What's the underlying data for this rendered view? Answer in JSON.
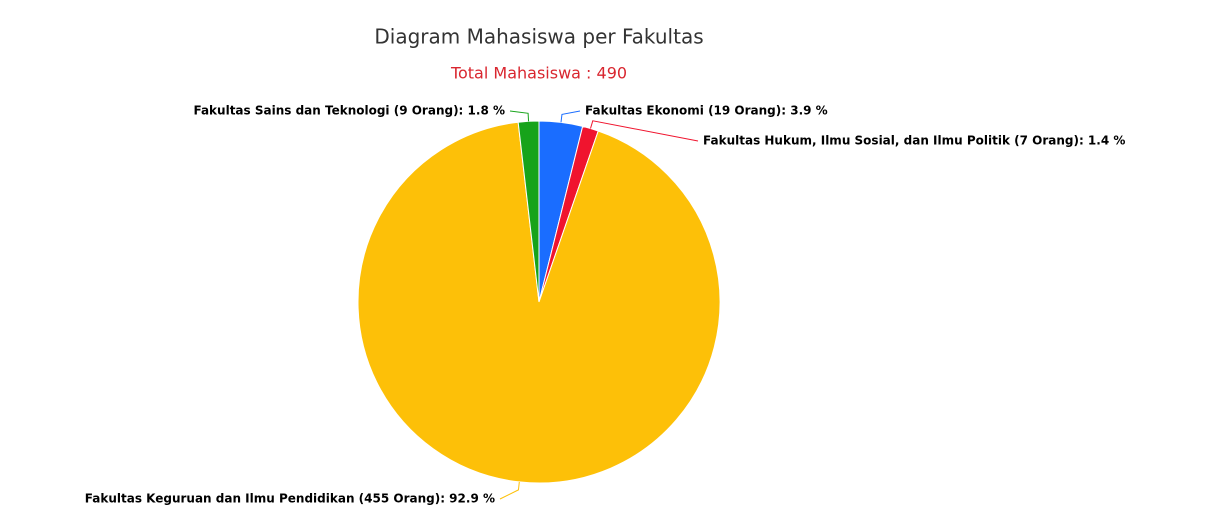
{
  "chart_data": {
    "type": "pie",
    "title": "Diagram Mahasiswa per Fakultas",
    "subtitle": "Total Mahasiswa : 490",
    "categories": [
      "Fakultas Ekonomi",
      "Fakultas Hukum, Ilmu Sosial, dan Ilmu Politik",
      "Fakultas Keguruan dan Ilmu Pendidikan",
      "Fakultas Sains dan Teknologi"
    ],
    "values": [
      19,
      7,
      455,
      9
    ],
    "value_labels": [
      "Fakultas Ekonomi (19 Orang): 3.9 %",
      "Fakultas Hukum, Ilmu Sosial, dan Ilmu Politik (7 Orang): 1.4 %",
      "Fakultas Keguruan dan Ilmu Pendidikan (455 Orang): 92.9 %",
      "Fakultas Sains dan Teknologi (9 Orang): 1.8 %"
    ],
    "colors": [
      "#1a6dff",
      "#f0142e",
      "#fdc008",
      "#17a31a"
    ]
  }
}
